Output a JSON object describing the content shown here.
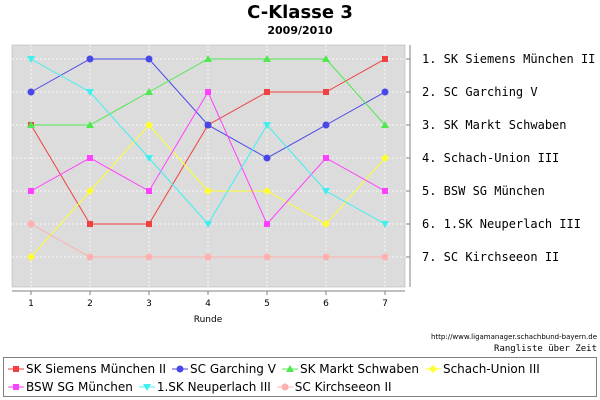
{
  "chart_data": {
    "type": "line",
    "title": "C-Klasse 3",
    "subtitle": "2009/2010",
    "xlabel": "Runde",
    "ylabel": "",
    "x": [
      1,
      2,
      3,
      4,
      5,
      6,
      7
    ],
    "ylim": [
      1,
      7
    ],
    "y_inverted": true,
    "grid": true,
    "rank_labels": [
      "1. SK Siemens München II",
      "2. SC Garching V",
      "3. SK Markt Schwaben",
      "4. Schach-Union III",
      "5. BSW SG München",
      "6. 1.SK Neuperlach III",
      "7. SC Kirchseeon II"
    ],
    "legend_position": "bottom",
    "series": [
      {
        "name": "SK Siemens München II",
        "color": "#f04040",
        "marker": "square",
        "values": [
          3,
          6,
          6,
          3,
          2,
          2,
          1
        ]
      },
      {
        "name": "SC Garching V",
        "color": "#4848e8",
        "marker": "circle",
        "values": [
          2,
          1,
          1,
          3,
          4,
          3,
          2
        ]
      },
      {
        "name": "SK Markt Schwaben",
        "color": "#50e850",
        "marker": "triangle",
        "values": [
          3,
          3,
          2,
          1,
          1,
          1,
          3
        ]
      },
      {
        "name": "Schach-Union III",
        "color": "#ffff30",
        "marker": "diamond",
        "values": [
          7,
          5,
          3,
          5,
          5,
          6,
          4
        ]
      },
      {
        "name": "BSW SG München",
        "color": "#ff40ff",
        "marker": "square",
        "values": [
          5,
          4,
          5,
          2,
          6,
          4,
          5
        ]
      },
      {
        "name": "1.SK Neuperlach III",
        "color": "#40f0f0",
        "marker": "triangle-down",
        "values": [
          1,
          2,
          4,
          6,
          3,
          5,
          6
        ]
      },
      {
        "name": "SC Kirchseeon II",
        "color": "#ffb0b0",
        "marker": "circle",
        "values": [
          6,
          7,
          7,
          7,
          7,
          7,
          7
        ]
      }
    ]
  },
  "source_url": "http://www.ligamanager.schachbund-bayern.de",
  "footer_caption": "Rangliste über Zeit"
}
